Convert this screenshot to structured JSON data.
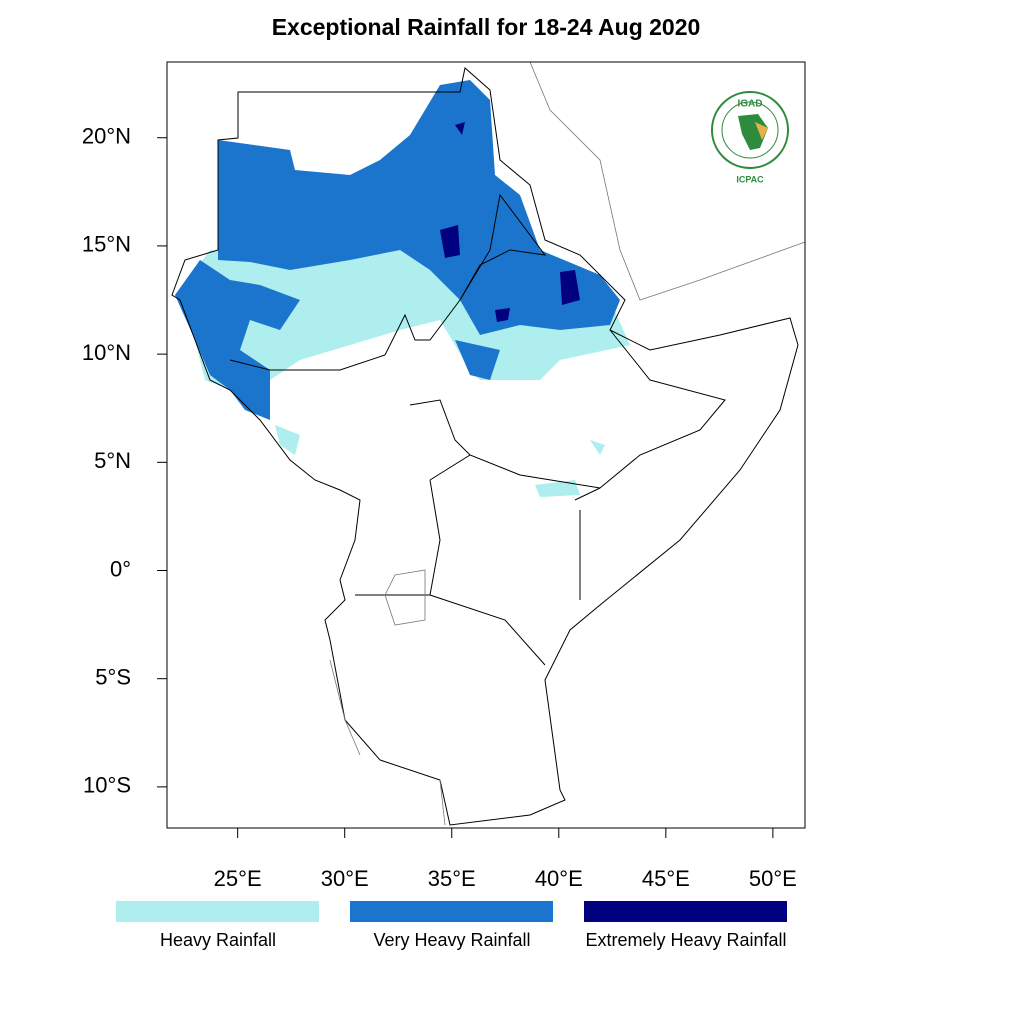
{
  "map": {
    "title": "Exceptional Rainfall for 18-24 Aug 2020",
    "lonlim": [
      21.7,
      51.5
    ],
    "latlim": [
      -11.9,
      23.5
    ],
    "lonticks": [
      {
        "value": 25,
        "label": "25°E"
      },
      {
        "value": 30,
        "label": "30°E"
      },
      {
        "value": 35,
        "label": "35°E"
      },
      {
        "value": 40,
        "label": "40°E"
      },
      {
        "value": 45,
        "label": "45°E"
      },
      {
        "value": 50,
        "label": "50°E"
      }
    ],
    "latticks": [
      {
        "value": 20,
        "label": "20°N"
      },
      {
        "value": 15,
        "label": "15°N"
      },
      {
        "value": 10,
        "label": "10°N"
      },
      {
        "value": 5,
        "label": "5°N"
      },
      {
        "value": 0,
        "label": "0°"
      },
      {
        "value": -5,
        "label": "5°S"
      },
      {
        "value": -10,
        "label": "10°S"
      }
    ],
    "legend": [
      {
        "name": "Heavy Rainfall",
        "color": "#aeeeee"
      },
      {
        "name": "Very Heavy Rainfall",
        "color": "#1c75cd"
      },
      {
        "name": "Extremely Heavy Rainfall",
        "color": "#000080"
      }
    ],
    "logo": {
      "top": "IGAD",
      "bottom": "ICPAC"
    }
  }
}
